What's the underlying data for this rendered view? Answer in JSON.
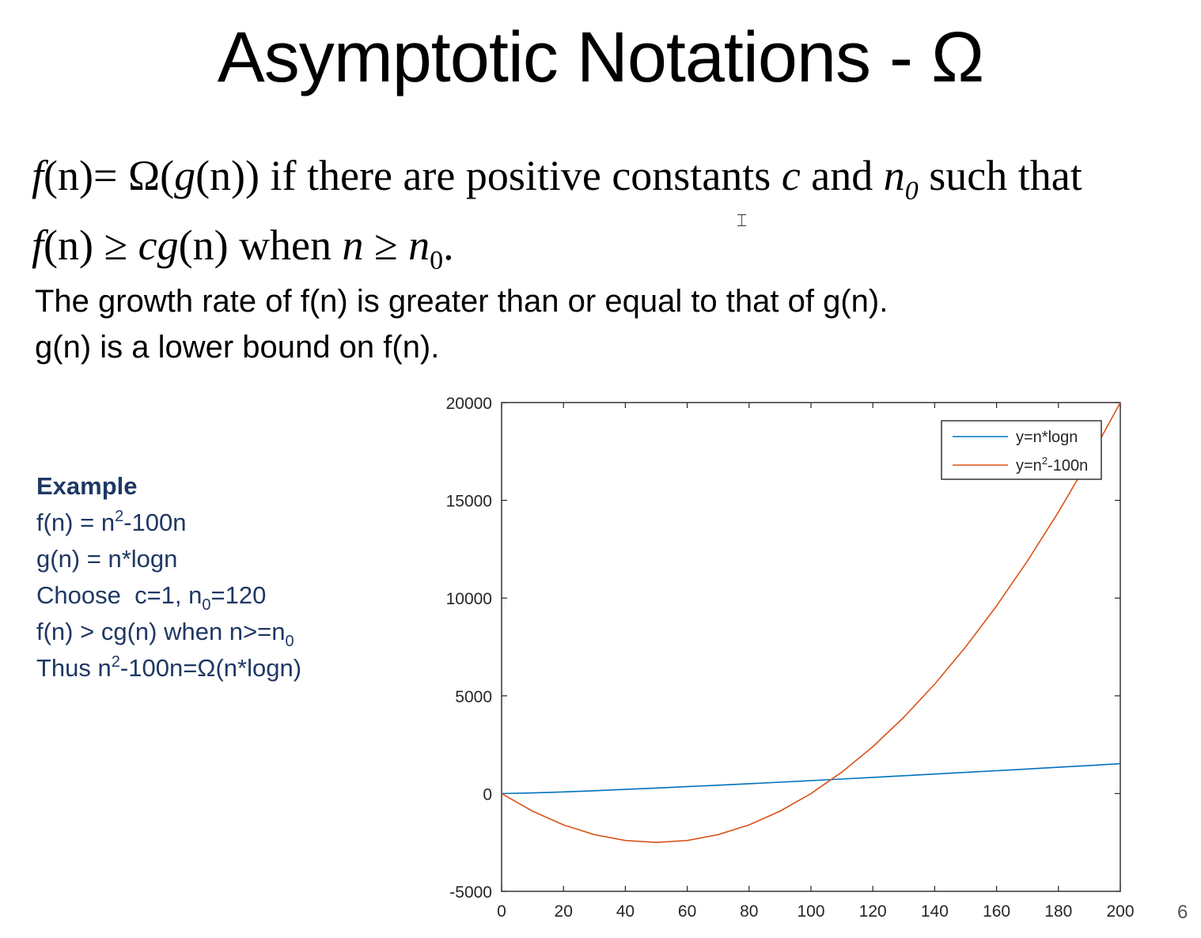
{
  "slide": {
    "title": "Asymptotic Notations - Ω",
    "number": "6"
  },
  "definition": {
    "l1_fn": "f",
    "l1_n1": "(n)",
    "l1_eq": "= Ω(",
    "l1_g": "g",
    "l1_n2": "(n)",
    "l1_close": ") if there are positive constants ",
    "l1_c": "c",
    "l1_and": " and ",
    "l1_n0": "n",
    "l1_n0_sub": "0",
    "l1_tail": " such that",
    "l2_fn": "f",
    "l2_n1": "(n)",
    "l2_geq": " ≥ ",
    "l2_cg": "cg",
    "l2_n2": "(n)",
    "l2_when": " when ",
    "l2_n": "n",
    "l2_geq2": " ≥ ",
    "l2_n0": "n",
    "l2_n0_sub": "0",
    "l2_dot": "."
  },
  "description": {
    "line1": "The growth rate of f(n) is greater than or equal to that of g(n).",
    "line2": "g(n) is a lower bound on f(n)."
  },
  "example": {
    "heading": "Example",
    "f_pre": "f(n) = n",
    "f_sup": "2",
    "f_post": "-100n",
    "g_line": "g(n) = n*logn",
    "choose_pre": "Choose  c=1, n",
    "choose_sub": "0",
    "choose_post": "=120",
    "cond_pre": "f(n) > cg(n) when n>=n",
    "cond_sub": "0",
    "thus_pre": "Thus n",
    "thus_sup": "2",
    "thus_post": "-100n=Ω(n*logn)"
  },
  "chart_data": {
    "type": "line",
    "xlim": [
      0,
      200
    ],
    "ylim": [
      -5000,
      20000
    ],
    "xticks": [
      0,
      20,
      40,
      60,
      80,
      100,
      120,
      140,
      160,
      180,
      200
    ],
    "yticks": [
      20000,
      15000,
      10000,
      5000,
      0,
      -5000
    ],
    "grid": false,
    "legend_position": "top-right",
    "x": [
      0,
      10,
      20,
      30,
      40,
      50,
      60,
      70,
      80,
      90,
      100,
      110,
      120,
      130,
      140,
      150,
      160,
      170,
      180,
      190,
      200
    ],
    "series": [
      {
        "name_pre": "y=n*logn",
        "color": "#0072bd",
        "values": [
          0,
          33,
          86,
          147,
          213,
          282,
          354,
          429,
          506,
          584,
          664,
          746,
          829,
          913,
          998,
          1084,
          1171,
          1260,
          1349,
          1438,
          1529
        ]
      },
      {
        "name_pre": "y=n",
        "name_sup": "2",
        "name_post": "-100n",
        "color": "#d95319",
        "values": [
          0,
          -900,
          -1600,
          -2100,
          -2400,
          -2500,
          -2400,
          -2100,
          -1600,
          -900,
          0,
          1100,
          2400,
          3900,
          5600,
          7500,
          9600,
          11900,
          14400,
          17100,
          20000
        ]
      }
    ]
  }
}
